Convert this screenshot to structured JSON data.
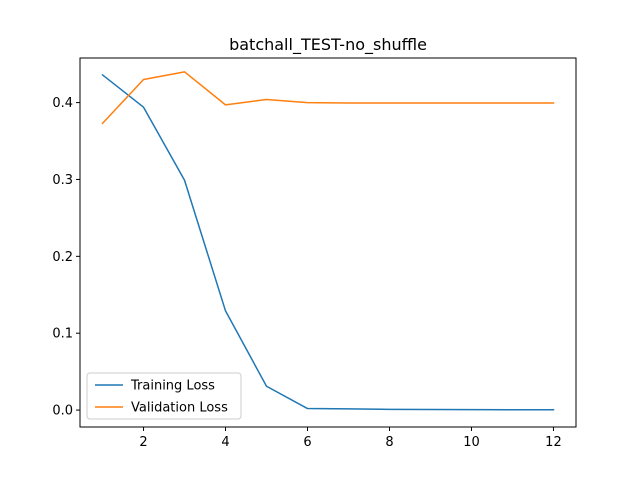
{
  "chart_data": {
    "type": "line",
    "title": "batchall_TEST-no_shuffle",
    "xlabel": "",
    "ylabel": "",
    "xlim": [
      0.45,
      12.55
    ],
    "ylim": [
      -0.022,
      0.458
    ],
    "xticks": [
      2,
      4,
      6,
      8,
      10,
      12
    ],
    "yticks": [
      0.0,
      0.1,
      0.2,
      0.3,
      0.4
    ],
    "ytick_labels": [
      "0.0",
      "0.1",
      "0.2",
      "0.3",
      "0.4"
    ],
    "grid": false,
    "legend_position": "lower-left",
    "x": [
      1,
      2,
      3,
      4,
      5,
      6,
      7,
      8,
      9,
      10,
      11,
      12
    ],
    "series": [
      {
        "name": "Training Loss",
        "color": "#1f77b4",
        "values": [
          0.436,
          0.394,
          0.299,
          0.129,
          0.031,
          0.002,
          0.0015,
          0.001,
          0.0008,
          0.0006,
          0.0005,
          0.0005
        ]
      },
      {
        "name": "Validation Loss",
        "color": "#ff7f0e",
        "values": [
          0.373,
          0.43,
          0.44,
          0.397,
          0.404,
          0.4,
          0.3995,
          0.3995,
          0.3995,
          0.3995,
          0.3995,
          0.3995
        ]
      }
    ]
  }
}
